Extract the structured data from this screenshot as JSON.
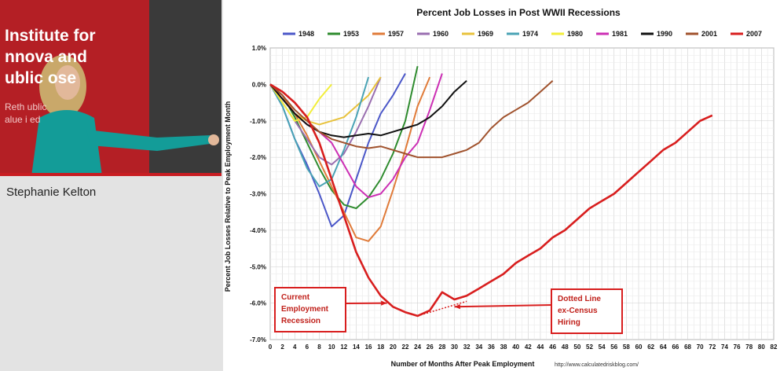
{
  "video": {
    "banner_lines": [
      "Institute for",
      "nnova   and",
      "ublic     ose"
    ],
    "banner_sub_lines": [
      "Reth       ublic",
      "alue i           ed"
    ],
    "speaker_name": "Stephanie Kelton"
  },
  "chart_data": {
    "type": "line",
    "title": "Percent Job Losses in Post WWII Recessions",
    "xlabel": "Number of Months After Peak Employment",
    "ylabel": "Percent Job Losses Relative to Peak Employment Month",
    "source": "http://www.calculatedriskblog.com/",
    "xlim": [
      0,
      82
    ],
    "ylim": [
      -7.0,
      1.0
    ],
    "x_ticks": [
      0,
      2,
      4,
      6,
      8,
      10,
      12,
      14,
      16,
      18,
      20,
      22,
      24,
      26,
      28,
      30,
      32,
      34,
      36,
      38,
      40,
      42,
      44,
      46,
      48,
      50,
      52,
      54,
      56,
      58,
      60,
      62,
      64,
      66,
      68,
      70,
      72,
      74,
      76,
      78,
      80,
      82
    ],
    "y_ticks": [
      "1.0%",
      "0.0%",
      "-1.0%",
      "-2.0%",
      "-3.0%",
      "-4.0%",
      "-5.0%",
      "-6.0%",
      "-7.0%"
    ],
    "y_tick_values": [
      1,
      0,
      -1,
      -2,
      -3,
      -4,
      -5,
      -6,
      -7
    ],
    "grid": true,
    "legend_position": "top",
    "series": [
      {
        "name": "1948",
        "color": "#4b57c8",
        "x": [
          0,
          2,
          4,
          6,
          8,
          10,
          12,
          14,
          16,
          18,
          20,
          22
        ],
        "y": [
          0,
          -0.6,
          -1.5,
          -2.2,
          -3.0,
          -3.9,
          -3.6,
          -2.6,
          -1.6,
          -0.8,
          -0.3,
          0.3
        ]
      },
      {
        "name": "1953",
        "color": "#2e8b2e",
        "x": [
          0,
          2,
          4,
          6,
          8,
          10,
          12,
          14,
          16,
          18,
          20,
          22,
          24
        ],
        "y": [
          0,
          -0.3,
          -0.9,
          -1.6,
          -2.3,
          -2.9,
          -3.3,
          -3.4,
          -3.1,
          -2.6,
          -1.9,
          -1.0,
          0.5
        ]
      },
      {
        "name": "1957",
        "color": "#e07b39",
        "x": [
          0,
          2,
          4,
          6,
          8,
          10,
          12,
          14,
          16,
          18,
          20,
          22,
          24,
          26
        ],
        "y": [
          0,
          -0.3,
          -0.8,
          -1.4,
          -2.1,
          -2.8,
          -3.5,
          -4.2,
          -4.3,
          -3.9,
          -2.9,
          -1.8,
          -0.6,
          0.2
        ]
      },
      {
        "name": "1960",
        "color": "#9a6fb0",
        "x": [
          0,
          2,
          4,
          6,
          8,
          10,
          12,
          14,
          16,
          18
        ],
        "y": [
          0,
          -0.5,
          -1.0,
          -1.5,
          -2.0,
          -2.2,
          -1.9,
          -1.3,
          -0.6,
          0.2
        ]
      },
      {
        "name": "1969",
        "color": "#e8c23c",
        "x": [
          0,
          2,
          4,
          6,
          8,
          10,
          12,
          14,
          16,
          18
        ],
        "y": [
          0,
          -0.4,
          -0.8,
          -1.0,
          -1.1,
          -1.0,
          -0.9,
          -0.6,
          -0.3,
          0.2
        ]
      },
      {
        "name": "1974",
        "color": "#4aa3b5",
        "x": [
          0,
          2,
          4,
          6,
          8,
          10,
          12,
          14,
          16
        ],
        "y": [
          0,
          -0.6,
          -1.5,
          -2.3,
          -2.8,
          -2.6,
          -1.8,
          -0.9,
          0.2
        ]
      },
      {
        "name": "1980",
        "color": "#f2ee3a",
        "x": [
          0,
          2,
          4,
          6,
          8,
          10
        ],
        "y": [
          0,
          -0.5,
          -1.0,
          -0.9,
          -0.4,
          0.0
        ]
      },
      {
        "name": "1981",
        "color": "#cc2fb4",
        "x": [
          0,
          2,
          4,
          6,
          8,
          10,
          12,
          14,
          16,
          18,
          20,
          22,
          24,
          26,
          28
        ],
        "y": [
          0,
          -0.4,
          -0.8,
          -1.1,
          -1.3,
          -1.6,
          -2.2,
          -2.8,
          -3.1,
          -3.0,
          -2.6,
          -2.0,
          -1.6,
          -0.7,
          0.3
        ]
      },
      {
        "name": "1990",
        "color": "#111111",
        "x": [
          0,
          2,
          4,
          6,
          8,
          10,
          12,
          14,
          16,
          18,
          20,
          22,
          24,
          26,
          28,
          30,
          32
        ],
        "y": [
          0,
          -0.4,
          -0.8,
          -1.1,
          -1.3,
          -1.4,
          -1.45,
          -1.4,
          -1.35,
          -1.4,
          -1.3,
          -1.2,
          -1.1,
          -0.9,
          -0.6,
          -0.2,
          0.1
        ]
      },
      {
        "name": "2001",
        "color": "#a0522d",
        "x": [
          0,
          2,
          4,
          6,
          8,
          10,
          12,
          14,
          16,
          18,
          20,
          22,
          24,
          26,
          28,
          30,
          32,
          34,
          36,
          38,
          40,
          42,
          44,
          46
        ],
        "y": [
          0,
          -0.3,
          -0.7,
          -1.0,
          -1.3,
          -1.5,
          -1.6,
          -1.7,
          -1.75,
          -1.7,
          -1.8,
          -1.9,
          -2.0,
          -2.0,
          -2.0,
          -1.9,
          -1.8,
          -1.6,
          -1.2,
          -0.9,
          -0.7,
          -0.5,
          -0.2,
          0.1
        ]
      },
      {
        "name": "2007",
        "color": "#d81e1e",
        "x": [
          0,
          2,
          4,
          6,
          8,
          10,
          12,
          14,
          16,
          18,
          20,
          22,
          24,
          26,
          28,
          30,
          32,
          34,
          36,
          38,
          40,
          42,
          44,
          46,
          48,
          50,
          52,
          54,
          56,
          58,
          60,
          62,
          64,
          66,
          68,
          70,
          72
        ],
        "y": [
          0,
          -0.2,
          -0.5,
          -0.9,
          -1.6,
          -2.6,
          -3.6,
          -4.6,
          -5.3,
          -5.8,
          -6.1,
          -6.25,
          -6.35,
          -6.2,
          -5.7,
          -5.9,
          -5.8,
          -5.6,
          -5.4,
          -5.2,
          -4.9,
          -4.7,
          -4.5,
          -4.2,
          -4.0,
          -3.7,
          -3.4,
          -3.2,
          -3.0,
          -2.7,
          -2.4,
          -2.1,
          -1.8,
          -1.6,
          -1.3,
          -1.0,
          -0.85
        ]
      }
    ],
    "annotations": [
      {
        "label_lines": [
          "Current",
          "Employment",
          "Recession"
        ],
        "points_to_x": 19,
        "points_to_y": -6.0,
        "color": "#d81e1e"
      },
      {
        "label_lines": [
          "Dotted Line",
          "ex-Census",
          "Hiring"
        ],
        "points_to_x": 30,
        "points_to_y": -6.1,
        "color": "#d81e1e"
      }
    ]
  }
}
